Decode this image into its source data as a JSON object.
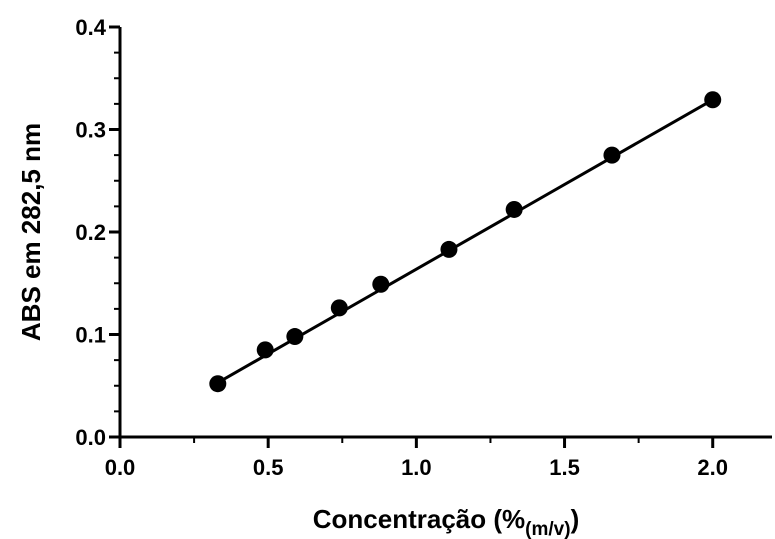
{
  "chart_data": {
    "type": "scatter",
    "title": "",
    "xlabel": "Concentração (%",
    "xlabel_subscript": "(m/v)",
    "xlabel_close": ")",
    "ylabel": "ABS em 282,5 nm",
    "xlim": [
      0.0,
      2.2
    ],
    "ylim": [
      0.0,
      0.4
    ],
    "x_ticks": [
      "0.0",
      "0.5",
      "1.0",
      "1.5",
      "2.0"
    ],
    "x_tick_values": [
      0.0,
      0.5,
      1.0,
      1.5,
      2.0
    ],
    "y_ticks": [
      "0.0",
      "0.1",
      "0.2",
      "0.3",
      "0.4"
    ],
    "y_tick_values": [
      0.0,
      0.1,
      0.2,
      0.3,
      0.4
    ],
    "grid": false,
    "legend": "none",
    "series": [
      {
        "x": [
          0.33,
          0.49,
          0.59,
          0.74,
          0.88,
          1.11,
          1.33,
          1.66,
          2.0
        ],
        "y": [
          0.052,
          0.085,
          0.098,
          0.126,
          0.149,
          0.183,
          0.222,
          0.275,
          0.329
        ],
        "color": "#000000",
        "marker": "circle"
      }
    ],
    "fit_line": {
      "x": [
        0.33,
        2.0
      ],
      "y": [
        0.053,
        0.329
      ],
      "color": "#000000"
    }
  }
}
